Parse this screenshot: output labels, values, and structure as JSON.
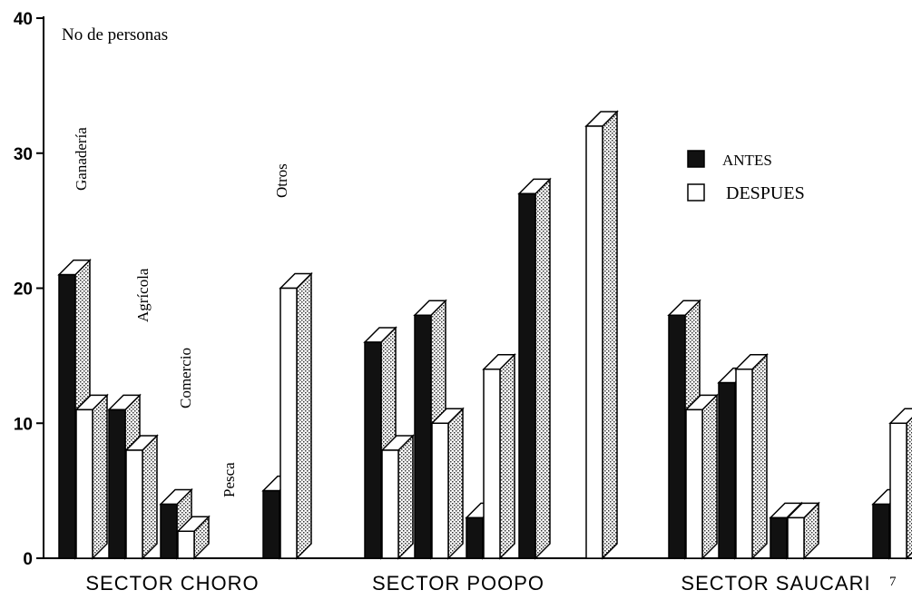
{
  "chart_data": {
    "type": "bar",
    "title": "",
    "ylabel": "No de personas",
    "ylim": [
      0,
      40
    ],
    "yticks": [
      "0",
      "10",
      "20",
      "30",
      "40"
    ],
    "groups": [
      "SECTOR CHORO",
      "SECTOR POOPO",
      "SECTOR SAUCARI"
    ],
    "categories": [
      "Ganadería",
      "Agrícola",
      "Comercio",
      "Pesca",
      "Otros"
    ],
    "series": [
      {
        "name": "ANTES",
        "color": "#111111",
        "values": [
          [
            21,
            11,
            4,
            0,
            5
          ],
          [
            16,
            18,
            3,
            27,
            0
          ],
          [
            18,
            13,
            3,
            0,
            4
          ]
        ]
      },
      {
        "name": "DESPUES",
        "color": "#ffffff",
        "values": [
          [
            11,
            8,
            2,
            0,
            20
          ],
          [
            8,
            10,
            14,
            0,
            32
          ],
          [
            11,
            14,
            3,
            0,
            10
          ]
        ]
      }
    ],
    "legend_position": "top-right",
    "grid": false,
    "stray_mark": "7"
  }
}
